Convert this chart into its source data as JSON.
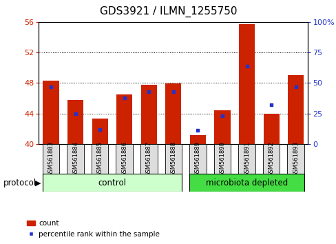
{
  "title": "GDS3921 / ILMN_1255750",
  "categories": [
    "GSM561883",
    "GSM561884",
    "GSM561885",
    "GSM561886",
    "GSM561887",
    "GSM561888",
    "GSM561889",
    "GSM561890",
    "GSM561891",
    "GSM561892",
    "GSM561893"
  ],
  "count_values": [
    48.3,
    45.8,
    43.3,
    46.5,
    47.8,
    47.9,
    41.2,
    44.4,
    55.7,
    44.0,
    49.0
  ],
  "percentile_values": [
    47,
    25,
    12,
    38,
    43,
    43,
    11,
    23,
    64,
    32,
    47
  ],
  "left_ylim": [
    40,
    56
  ],
  "left_yticks": [
    40,
    44,
    48,
    52,
    56
  ],
  "right_ylim": [
    0,
    100
  ],
  "right_yticks": [
    0,
    25,
    50,
    75,
    100
  ],
  "bar_color": "#cc2200",
  "dot_color": "#2233cc",
  "bar_width": 0.65,
  "control_label": "control",
  "microbiota_label": "microbiota depleted",
  "protocol_label": "protocol",
  "legend_count_label": "count",
  "legend_percentile_label": "percentile rank within the sample",
  "title_fontsize": 11,
  "axis_color_left": "#cc2200",
  "axis_color_right": "#2233cc",
  "control_bg": "#ccffcc",
  "microbiota_bg": "#44dd44",
  "tick_label_bg": "#dddddd",
  "bg_color": "#ffffff"
}
